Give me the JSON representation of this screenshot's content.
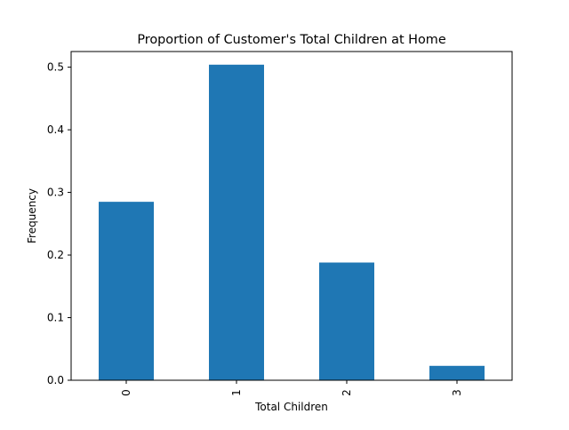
{
  "chart_data": {
    "type": "bar",
    "title": "Proportion of Customer's Total Children at Home",
    "xlabel": "Total Children",
    "ylabel": "Frequency",
    "categories": [
      "0",
      "1",
      "2",
      "3"
    ],
    "values": [
      0.285,
      0.504,
      0.188,
      0.023
    ],
    "ylim": [
      0,
      0.525
    ],
    "yticks": [
      0.0,
      0.1,
      0.2,
      0.3,
      0.4,
      0.5
    ],
    "ytick_labels": [
      "0.0",
      "0.1",
      "0.2",
      "0.3",
      "0.4",
      "0.5"
    ],
    "xtick_rotation": "vertical",
    "grid": false,
    "legend": "none",
    "bar_color": "#1f77b4"
  }
}
